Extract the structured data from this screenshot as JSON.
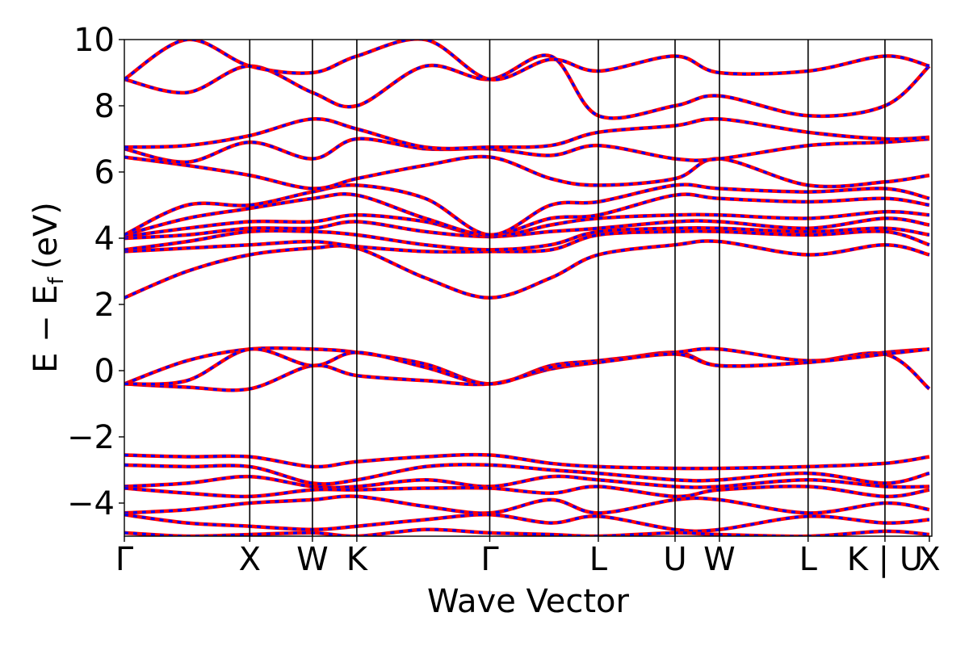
{
  "chart_data": {
    "type": "line",
    "xlabel": "Wave Vector",
    "ylabel_main": "E − E",
    "ylabel_sub": "f",
    "ylabel_unit": "(eV)",
    "ylim": [
      -5,
      10
    ],
    "yticks": [
      -4,
      -2,
      0,
      2,
      4,
      6,
      8,
      10
    ],
    "ytick_labels": [
      "−4",
      "−2",
      "0",
      "2",
      "4",
      "6",
      "8",
      "10"
    ],
    "x_range": [
      0,
      6.44
    ],
    "high_symmetry_points": [
      {
        "label": "Γ",
        "x": 0.0
      },
      {
        "label": "X",
        "x": 1.0
      },
      {
        "label": "W",
        "x": 1.5
      },
      {
        "label": "K",
        "x": 1.854
      },
      {
        "label": "Γ",
        "x": 2.914
      },
      {
        "label": "L",
        "x": 3.78
      },
      {
        "label": "U",
        "x": 4.392
      },
      {
        "label": "W",
        "x": 4.746
      },
      {
        "label": "L",
        "x": 5.453
      },
      {
        "label": "K | U",
        "x": 6.066
      },
      {
        "label": "X",
        "x": 6.42
      }
    ],
    "grid": false,
    "legend": "none",
    "series_style": {
      "solid_color": "#ff0000",
      "dash_color": "#0000ff"
    },
    "series": [
      {
        "x": [
          0,
          0.5,
          1,
          1.5,
          1.854,
          2.4,
          2.914,
          3.4,
          3.78,
          4.392,
          4.746,
          5.453,
          6.066,
          6.42
        ],
        "y": [
          -0.4,
          -0.5,
          -0.55,
          0.15,
          -0.15,
          -0.3,
          -0.4,
          0.05,
          0.25,
          0.55,
          0.15,
          0.25,
          0.5,
          -0.55
        ]
      },
      {
        "x": [
          0,
          0.5,
          1,
          1.5,
          1.854,
          2.4,
          2.914,
          3.4,
          3.78,
          4.392,
          4.746,
          5.453,
          6.066,
          6.42
        ],
        "y": [
          -0.4,
          0.3,
          0.65,
          0.65,
          0.55,
          0.2,
          -0.4,
          0.15,
          0.3,
          0.55,
          0.65,
          0.3,
          0.55,
          0.65
        ]
      },
      {
        "x": [
          0,
          0.5,
          1,
          1.5,
          1.854,
          2.4,
          2.914,
          3.4,
          3.78,
          4.392,
          4.746,
          5.453,
          6.066,
          6.42
        ],
        "y": [
          -0.4,
          -0.3,
          0.65,
          0.15,
          0.55,
          0.1,
          -0.4,
          0.1,
          0.25,
          0.5,
          0.15,
          0.25,
          0.5,
          0.65
        ]
      },
      {
        "x": [
          0,
          0.5,
          1,
          1.5,
          1.854,
          2.4,
          2.914,
          3.4,
          3.78,
          4.392,
          4.746,
          5.453,
          6.066,
          6.42
        ],
        "y": [
          2.2,
          3.0,
          3.5,
          3.7,
          3.7,
          2.8,
          2.2,
          2.8,
          3.5,
          3.8,
          3.9,
          3.5,
          3.8,
          3.5
        ]
      },
      {
        "x": [
          0,
          0.5,
          1,
          1.5,
          1.854,
          2.4,
          2.914,
          3.4,
          3.78,
          4.392,
          4.746,
          5.453,
          6.066,
          6.42
        ],
        "y": [
          3.6,
          3.7,
          3.8,
          3.9,
          3.75,
          3.6,
          3.6,
          3.65,
          4.1,
          4.2,
          4.2,
          4.1,
          4.2,
          3.8
        ]
      },
      {
        "x": [
          0,
          0.5,
          1,
          1.5,
          1.854,
          2.4,
          2.914,
          3.4,
          3.78,
          4.392,
          4.746,
          5.453,
          6.066,
          6.42
        ],
        "y": [
          3.65,
          3.9,
          4.2,
          4.2,
          4.1,
          3.8,
          3.65,
          3.8,
          4.2,
          4.3,
          4.3,
          4.2,
          4.3,
          4.1
        ]
      },
      {
        "x": [
          0,
          0.5,
          1,
          1.5,
          1.854,
          2.4,
          2.914,
          3.4,
          3.78,
          4.392,
          4.746,
          5.453,
          6.066,
          6.42
        ],
        "y": [
          4.0,
          4.1,
          4.3,
          4.3,
          4.5,
          4.2,
          4.05,
          4.2,
          4.3,
          4.5,
          4.5,
          4.3,
          4.6,
          4.4
        ]
      },
      {
        "x": [
          0,
          0.5,
          1,
          1.5,
          1.854,
          2.4,
          2.914,
          3.4,
          3.78,
          4.392,
          4.746,
          5.453,
          6.066,
          6.42
        ],
        "y": [
          4.05,
          4.3,
          4.5,
          4.5,
          4.7,
          4.5,
          4.05,
          4.4,
          4.6,
          4.7,
          4.7,
          4.6,
          4.8,
          4.7
        ]
      },
      {
        "x": [
          0,
          0.5,
          1,
          1.5,
          1.854,
          2.4,
          2.914,
          3.4,
          3.78,
          4.392,
          4.746,
          5.453,
          6.066,
          6.42
        ],
        "y": [
          4.1,
          4.6,
          4.9,
          5.2,
          5.3,
          4.6,
          4.1,
          4.6,
          4.7,
          5.3,
          5.2,
          5.1,
          5.2,
          5.0
        ]
      },
      {
        "x": [
          0,
          0.5,
          1,
          1.5,
          1.854,
          2.4,
          2.914,
          3.4,
          3.78,
          4.392,
          4.746,
          5.453,
          6.066,
          6.42
        ],
        "y": [
          4.1,
          5.0,
          5.0,
          5.4,
          5.6,
          5.2,
          4.1,
          5.0,
          5.1,
          5.6,
          5.5,
          5.4,
          5.5,
          5.2
        ]
      },
      {
        "x": [
          0,
          0.5,
          1,
          1.5,
          1.854,
          2.4,
          2.914,
          3.4,
          3.78,
          4.392,
          4.746,
          5.453,
          6.066,
          6.42
        ],
        "y": [
          6.45,
          6.2,
          5.9,
          5.5,
          5.8,
          6.2,
          6.45,
          5.8,
          5.6,
          5.8,
          6.4,
          5.6,
          5.7,
          5.9
        ]
      },
      {
        "x": [
          0,
          0.5,
          1,
          1.5,
          1.854,
          2.4,
          2.914,
          3.4,
          3.78,
          4.392,
          4.746,
          5.453,
          6.066,
          6.42
        ],
        "y": [
          6.7,
          6.3,
          6.9,
          6.4,
          7.0,
          6.7,
          6.7,
          6.5,
          6.8,
          6.4,
          6.4,
          6.8,
          6.9,
          7.0
        ]
      },
      {
        "x": [
          0,
          0.5,
          1,
          1.5,
          1.854,
          2.4,
          2.914,
          3.4,
          3.78,
          4.392,
          4.746,
          5.453,
          6.066,
          6.42
        ],
        "y": [
          6.75,
          6.8,
          7.1,
          7.6,
          7.3,
          6.75,
          6.75,
          6.8,
          7.2,
          7.4,
          7.6,
          7.2,
          7.0,
          7.05
        ]
      },
      {
        "x": [
          0,
          0.5,
          1,
          1.5,
          1.854,
          2.4,
          2.914,
          3.4,
          3.78,
          4.392,
          4.746,
          5.453,
          6.066,
          6.42
        ],
        "y": [
          8.8,
          8.4,
          9.2,
          8.4,
          8.0,
          9.2,
          8.8,
          9.5,
          7.7,
          8.0,
          8.3,
          7.7,
          8.0,
          9.2
        ]
      },
      {
        "x": [
          0,
          0.5,
          1,
          1.5,
          1.854,
          2.4,
          2.914,
          3.4,
          3.78,
          4.392,
          4.746,
          5.453,
          6.066,
          6.42
        ],
        "y": [
          8.8,
          10.0,
          9.2,
          9.0,
          9.5,
          10.0,
          8.8,
          9.4,
          9.05,
          9.5,
          9.0,
          9.05,
          9.5,
          9.2
        ]
      },
      {
        "x": [
          0,
          0.5,
          1,
          1.5,
          1.854,
          2.4,
          2.914,
          3.4,
          3.78,
          4.392,
          4.746,
          5.453,
          6.066,
          6.42
        ],
        "y": [
          -2.55,
          -2.6,
          -2.6,
          -2.9,
          -2.75,
          -2.6,
          -2.55,
          -2.8,
          -2.9,
          -2.95,
          -2.95,
          -2.9,
          -2.8,
          -2.6
        ]
      },
      {
        "x": [
          0,
          0.5,
          1,
          1.5,
          1.854,
          2.4,
          2.914,
          3.4,
          3.78,
          4.392,
          4.746,
          5.453,
          6.066,
          6.42
        ],
        "y": [
          -2.85,
          -2.9,
          -2.9,
          -3.4,
          -3.3,
          -2.9,
          -2.85,
          -3.0,
          -3.1,
          -3.3,
          -3.3,
          -3.1,
          -3.4,
          -3.1
        ]
      },
      {
        "x": [
          0,
          0.5,
          1,
          1.5,
          1.854,
          2.4,
          2.914,
          3.4,
          3.78,
          4.392,
          4.746,
          5.453,
          6.066,
          6.42
        ],
        "y": [
          -3.5,
          -3.4,
          -3.2,
          -3.5,
          -3.5,
          -3.3,
          -3.5,
          -3.2,
          -3.3,
          -3.5,
          -3.5,
          -3.3,
          -3.5,
          -3.5
        ]
      },
      {
        "x": [
          0,
          0.5,
          1,
          1.5,
          1.854,
          2.4,
          2.914,
          3.4,
          3.78,
          4.392,
          4.746,
          5.453,
          6.066,
          6.42
        ],
        "y": [
          -3.55,
          -3.7,
          -3.8,
          -3.6,
          -3.6,
          -3.55,
          -3.55,
          -3.7,
          -3.5,
          -3.8,
          -3.6,
          -3.5,
          -3.8,
          -3.6
        ]
      },
      {
        "x": [
          0,
          0.5,
          1,
          1.5,
          1.854,
          2.4,
          2.914,
          3.4,
          3.78,
          4.392,
          4.746,
          5.453,
          6.066,
          6.42
        ],
        "y": [
          -4.3,
          -4.2,
          -4.0,
          -3.9,
          -3.8,
          -4.1,
          -4.3,
          -3.9,
          -4.3,
          -3.9,
          -3.9,
          -4.3,
          -4.0,
          -4.2
        ]
      },
      {
        "x": [
          0,
          0.5,
          1,
          1.5,
          1.854,
          2.4,
          2.914,
          3.4,
          3.78,
          4.392,
          4.746,
          5.453,
          6.066,
          6.42
        ],
        "y": [
          -4.35,
          -4.6,
          -4.7,
          -4.8,
          -4.7,
          -4.5,
          -4.35,
          -4.6,
          -4.4,
          -4.8,
          -4.8,
          -4.4,
          -4.6,
          -4.5
        ]
      },
      {
        "x": [
          0,
          0.5,
          1,
          1.5,
          1.854,
          2.4,
          2.914,
          3.4,
          3.78,
          4.392,
          4.746,
          5.453,
          6.066,
          6.42
        ],
        "y": [
          -4.9,
          -5.0,
          -4.95,
          -4.9,
          -5.0,
          -4.8,
          -4.9,
          -4.95,
          -5.0,
          -4.9,
          -4.95,
          -5.0,
          -4.85,
          -4.95
        ]
      }
    ]
  }
}
